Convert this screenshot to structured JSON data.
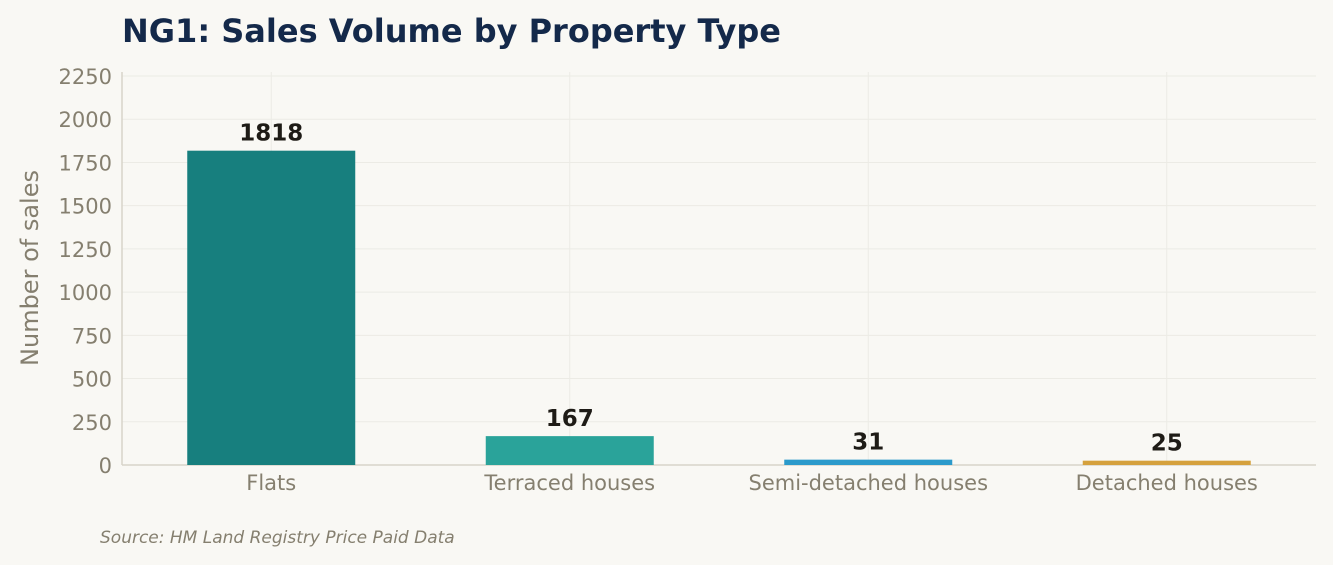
{
  "chart_data": {
    "type": "bar",
    "title": "NG1: Sales Volume by Property Type",
    "ylabel": "Number of sales",
    "xlabel": "",
    "categories": [
      "Flats",
      "Terraced houses",
      "Semi-detached houses",
      "Detached houses"
    ],
    "values": [
      1818,
      167,
      31,
      25
    ],
    "value_labels": [
      "1818",
      "167",
      "31",
      "25"
    ],
    "bar_colors": [
      "#177f7e",
      "#2aa39a",
      "#2b9acb",
      "#d5a13d"
    ],
    "ylim": [
      0,
      2250
    ],
    "yticks": [
      0,
      250,
      500,
      750,
      1000,
      1250,
      1500,
      1750,
      2000,
      2250
    ],
    "grid": true,
    "legend": "none"
  },
  "source": "Source: HM Land Registry Price Paid Data",
  "colors": {
    "background": "#f9f8f4",
    "title": "#14294a",
    "axis_text": "#857f6f",
    "value_text": "#1e1b16",
    "grid": "#ecebe5",
    "axis_line": "#d7d4ca"
  }
}
